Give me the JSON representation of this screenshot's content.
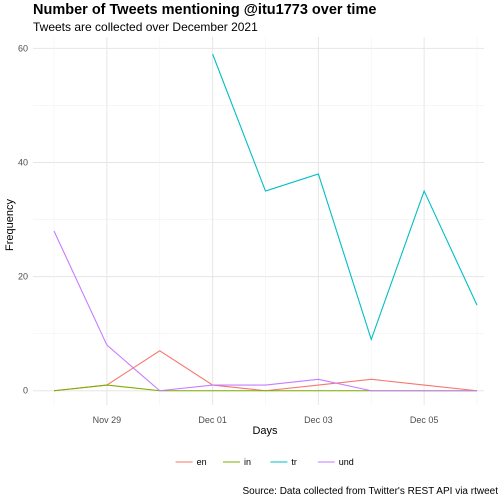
{
  "chart_data": {
    "type": "line",
    "title": "Number of Tweets mentioning @itu1773 over time",
    "subtitle": "Tweets are collected over December 2021",
    "xlabel": "Days",
    "ylabel": "Frequency",
    "caption": "Source: Data collected from Twitter's REST API via rtweet",
    "x": [
      "Nov 28",
      "Nov 29",
      "Nov 30",
      "Dec 01",
      "Dec 02",
      "Dec 03",
      "Dec 04",
      "Dec 05",
      "Dec 06"
    ],
    "x_ticks": [
      "Nov 29",
      "Dec 01",
      "Dec 03",
      "Dec 05"
    ],
    "y_ticks": [
      0,
      20,
      40,
      60
    ],
    "ylim": [
      -2.5,
      62
    ],
    "grid": true,
    "legend_position": "bottom",
    "series": [
      {
        "name": "en",
        "color": "#F8766D",
        "values": [
          0,
          1,
          7,
          1,
          0,
          1,
          2,
          1,
          0
        ]
      },
      {
        "name": "in",
        "color": "#7CAE00",
        "values": [
          0,
          1,
          0,
          0,
          0,
          0,
          0,
          0,
          0
        ]
      },
      {
        "name": "tr",
        "color": "#00BFC4",
        "values": [
          null,
          null,
          null,
          59,
          35,
          38,
          9,
          35,
          15
        ]
      },
      {
        "name": "und",
        "color": "#C77CFF",
        "values": [
          28,
          8,
          0,
          1,
          1,
          2,
          0,
          0,
          0
        ]
      }
    ]
  }
}
